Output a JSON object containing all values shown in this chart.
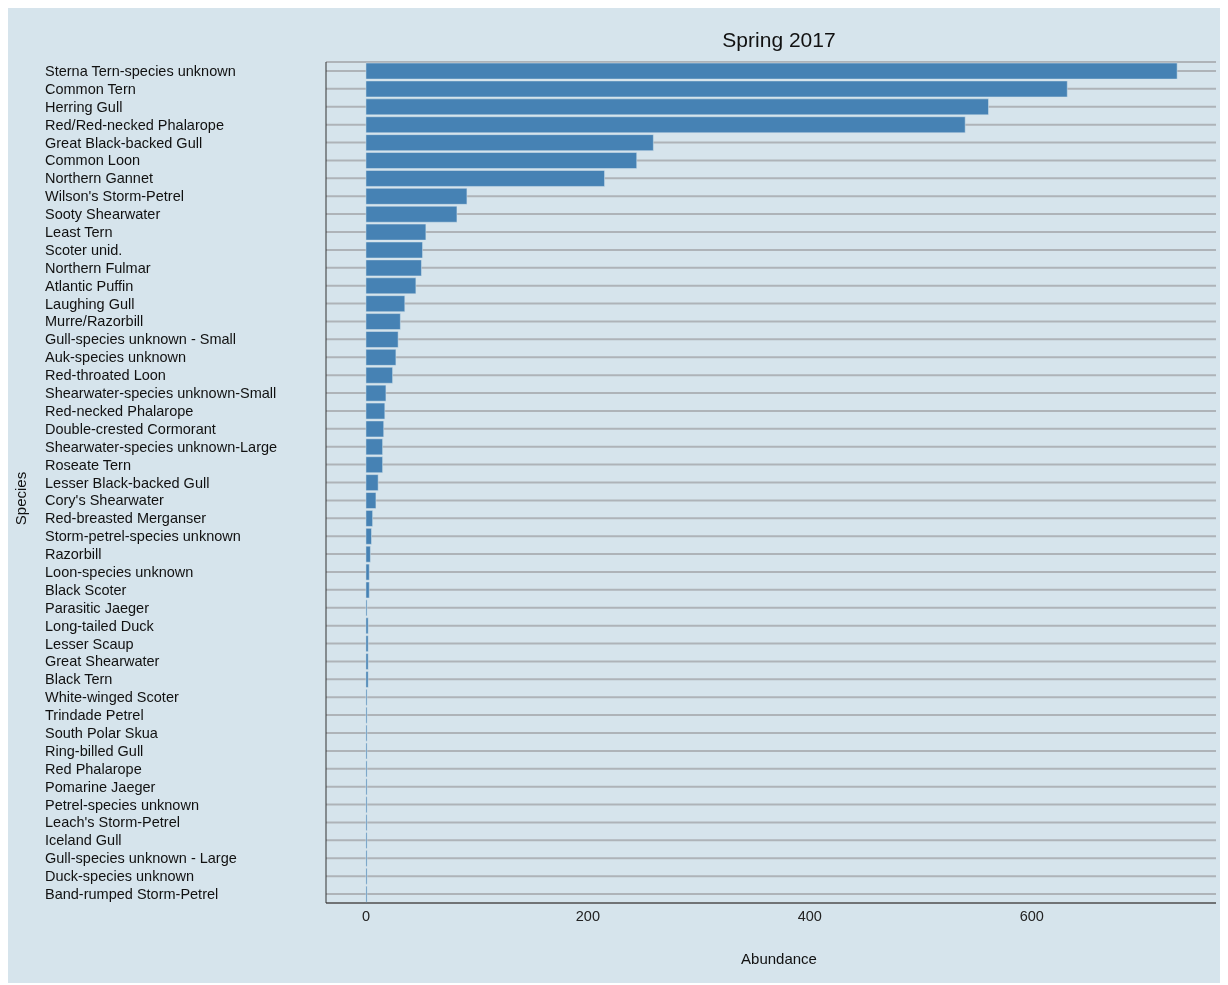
{
  "chart_data": {
    "type": "bar",
    "orientation": "horizontal",
    "title": "Spring 2017",
    "xlabel": "Abundance",
    "ylabel": "Species",
    "categories": [
      "Sterna Tern-species unknown",
      "Common Tern",
      "Herring Gull",
      "Red/Red-necked Phalarope",
      "Great Black-backed Gull",
      "Common Loon",
      "Northern Gannet",
      "Wilson's Storm-Petrel",
      "Sooty Shearwater",
      "Least Tern",
      "Scoter unid.",
      "Northern Fulmar",
      "Atlantic Puffin",
      "Laughing Gull",
      "Murre/Razorbill",
      "Gull-species unknown - Small",
      "Auk-species unknown",
      "Red-throated Loon",
      "Shearwater-species unknown-Small",
      "Red-necked Phalarope",
      "Double-crested Cormorant",
      "Shearwater-species unknown-Large",
      "Roseate Tern",
      "Lesser Black-backed Gull",
      "Cory's Shearwater",
      "Red-breasted Merganser",
      "Storm-petrel-species unknown",
      "Razorbill",
      "Loon-species unknown",
      "Black Scoter",
      "Parasitic Jaeger",
      "Long-tailed Duck",
      "Lesser Scaup",
      "Great Shearwater",
      "Black Tern",
      "White-winged Scoter",
      "Trindade Petrel",
      "South Polar Skua",
      "Ring-billed Gull",
      "Red Phalarope",
      "Pomarine Jaeger",
      "Petrel-species unknown",
      "Leach's Storm-Petrel",
      "Iceland Gull",
      "Gull-species unknown - Large",
      "Duck-species unknown",
      "Band-rumped Storm-Petrel"
    ],
    "values": [
      731,
      632,
      561,
      540,
      259,
      244,
      215,
      91,
      82,
      54,
      51,
      50,
      45,
      35,
      31,
      29,
      27,
      24,
      18,
      17,
      16,
      15,
      15,
      11,
      9,
      6,
      5,
      4,
      3,
      3,
      1,
      2,
      2,
      2,
      2,
      1,
      1,
      1,
      1,
      1,
      1,
      1,
      1,
      1,
      1,
      1,
      1
    ],
    "color": "#4682b4",
    "xlim": [
      -36,
      766
    ],
    "xticks": [
      0,
      200,
      400,
      600
    ],
    "grid": "y"
  }
}
